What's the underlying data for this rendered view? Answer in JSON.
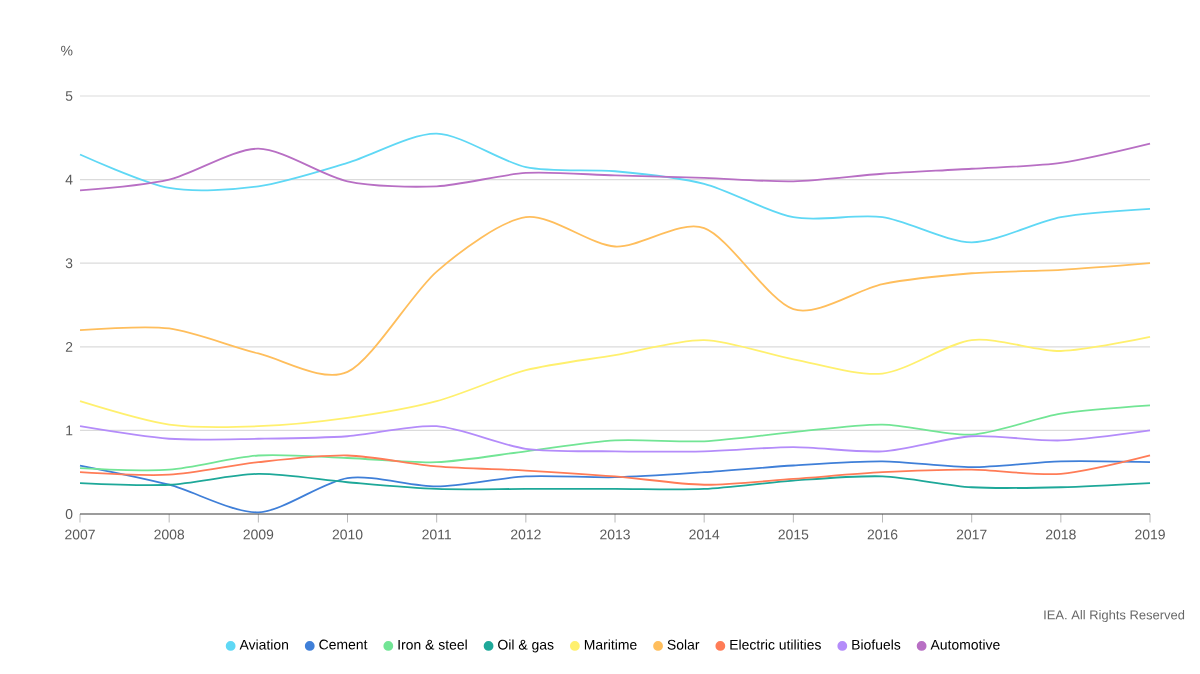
{
  "chart_data": {
    "type": "line",
    "ylabel": "%",
    "x": [
      2007,
      2008,
      2009,
      2010,
      2011,
      2012,
      2013,
      2014,
      2015,
      2016,
      2017,
      2018,
      2019
    ],
    "xlim": [
      2007,
      2019
    ],
    "xticks": [
      2007,
      2008,
      2009,
      2010,
      2011,
      2012,
      2013,
      2014,
      2015,
      2016,
      2017,
      2018,
      2019
    ],
    "ylim": [
      0,
      5
    ],
    "yticks": [
      0,
      1,
      2,
      3,
      4,
      5
    ],
    "grid": "y",
    "legend": "bottom",
    "line_style": "solid",
    "annotations": [
      "IEA. All Rights Reserved"
    ],
    "series": [
      {
        "name": "Aviation",
        "color": "#5fd8f5",
        "values": [
          4.3,
          3.9,
          3.92,
          4.2,
          4.55,
          4.15,
          4.1,
          3.95,
          3.55,
          3.55,
          3.25,
          3.55,
          3.65
        ]
      },
      {
        "name": "Cement",
        "color": "#3f7fd8",
        "values": [
          0.58,
          0.35,
          0.02,
          0.43,
          0.33,
          0.45,
          0.44,
          0.5,
          0.58,
          0.63,
          0.56,
          0.63,
          0.62
        ]
      },
      {
        "name": "Iron & steel",
        "color": "#72e595",
        "values": [
          0.55,
          0.53,
          0.7,
          0.67,
          0.62,
          0.75,
          0.88,
          0.87,
          0.98,
          1.07,
          0.95,
          1.2,
          1.3
        ]
      },
      {
        "name": "Oil & gas",
        "color": "#1ea899",
        "values": [
          0.37,
          0.35,
          0.48,
          0.38,
          0.3,
          0.3,
          0.3,
          0.3,
          0.4,
          0.45,
          0.32,
          0.32,
          0.37
        ]
      },
      {
        "name": "Maritime",
        "color": "#fff06e",
        "values": [
          1.35,
          1.07,
          1.05,
          1.15,
          1.35,
          1.72,
          1.9,
          2.08,
          1.85,
          1.68,
          2.08,
          1.95,
          2.12
        ]
      },
      {
        "name": "Solar",
        "color": "#ffbe5c",
        "values": [
          2.2,
          2.22,
          1.92,
          1.7,
          2.9,
          3.55,
          3.2,
          3.42,
          2.45,
          2.75,
          2.88,
          2.92,
          3.0
        ]
      },
      {
        "name": "Electric utilities",
        "color": "#ff7c57",
        "values": [
          0.5,
          0.47,
          0.62,
          0.7,
          0.57,
          0.52,
          0.45,
          0.35,
          0.42,
          0.5,
          0.53,
          0.48,
          0.7
        ]
      },
      {
        "name": "Biofuels",
        "color": "#b48cfa",
        "values": [
          1.05,
          0.9,
          0.9,
          0.93,
          1.05,
          0.78,
          0.75,
          0.75,
          0.8,
          0.75,
          0.93,
          0.88,
          1.0
        ]
      },
      {
        "name": "Automotive",
        "color": "#b86fc4",
        "values": [
          3.87,
          4.0,
          4.37,
          3.98,
          3.92,
          4.08,
          4.05,
          4.02,
          3.98,
          4.07,
          4.13,
          4.2,
          4.43
        ]
      }
    ]
  }
}
